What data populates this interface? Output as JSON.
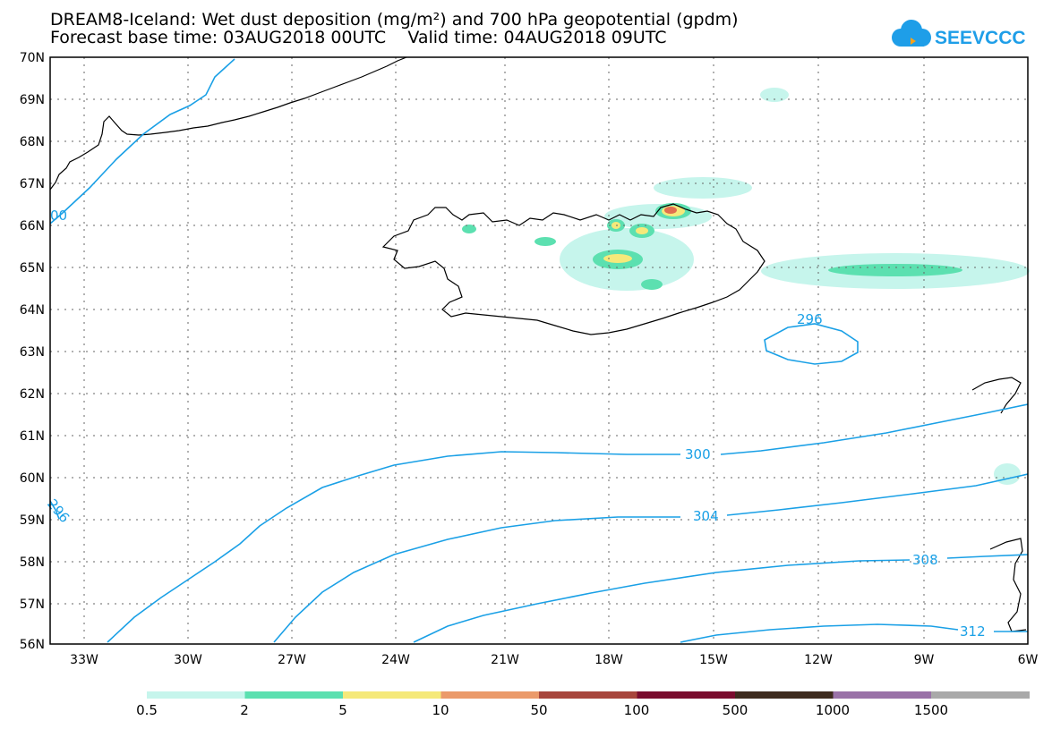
{
  "header": {
    "title_line1": "DREAM8-Iceland: Wet dust deposition (mg/m²) and 700 hPa geopotential (gpdm)",
    "title_line2": "Forecast base time: 03AUG2018 00UTC    Valid time: 04AUG2018 09UTC"
  },
  "logo": {
    "text": "SEEVCCC",
    "icon": "cloud-icon",
    "color": "#1e9ee8"
  },
  "map": {
    "lat_labels": [
      "70N",
      "69N",
      "68N",
      "67N",
      "66N",
      "65N",
      "64N",
      "63N",
      "62N",
      "61N",
      "60N",
      "59N",
      "58N",
      "57N",
      "56N"
    ],
    "lon_labels": [
      "33W",
      "30W",
      "27W",
      "24W",
      "21W",
      "18W",
      "15W",
      "12W",
      "9W",
      "6W"
    ],
    "contour_color": "#1aa0e6",
    "contour_labels": [
      "296",
      "300",
      "304",
      "308",
      "312",
      "296",
      "00"
    ]
  },
  "legend": {
    "colors": [
      "#c6f5ec",
      "#5ce0b0",
      "#f5e97a",
      "#eb9a6a",
      "#a8463c",
      "#7a0c2e",
      "#3e2b1e",
      "#9a72a8",
      "#a9a9a9"
    ],
    "labels": [
      "0.5",
      "2",
      "5",
      "10",
      "50",
      "100",
      "500",
      "1000",
      "1500"
    ]
  }
}
